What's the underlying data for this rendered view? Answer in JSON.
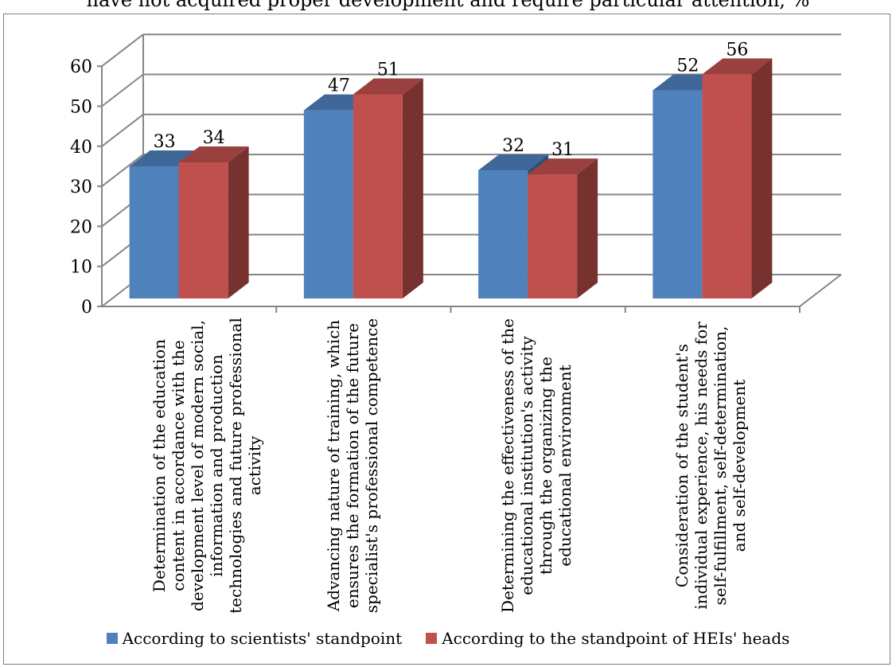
{
  "chart_data": {
    "type": "bar",
    "title": "have not acquired proper development and require particular attention, %",
    "categories": [
      "Determination of the education content in accordance with the development level of modern social, information and production technologies and future professional activity",
      "Advancing nature of training, which ensures the formation of the future specialist's professional competence",
      "Determining the effectiveness of the educational institution's activity through the organizing the educational environment",
      "Consideration of the student's individual experience, his needs for self-fulfillment, self-determination, and self-development"
    ],
    "series": [
      {
        "name": "According to scientists' standpoint",
        "values": [
          33,
          47,
          32,
          52
        ],
        "color": "#4f81bd"
      },
      {
        "name": "According to the standpoint of HEIs' heads",
        "values": [
          34,
          51,
          31,
          56
        ],
        "color": "#c0504d"
      }
    ],
    "ylim": [
      0,
      60
    ],
    "yticks": [
      "0",
      "10",
      "20",
      "30",
      "40",
      "50",
      "60"
    ],
    "grid": true,
    "legend": "bottom"
  }
}
